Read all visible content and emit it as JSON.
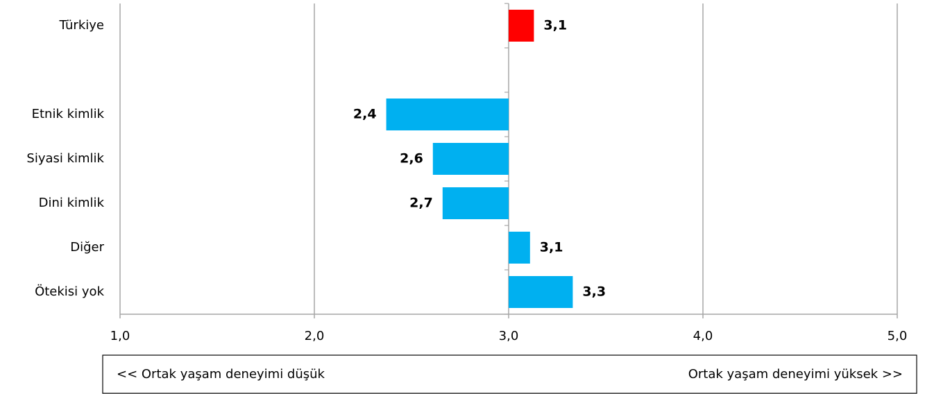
{
  "chart_data": {
    "type": "hbar",
    "categories": [
      "Türkiye",
      null,
      "Etnik kimlik",
      "Siyasi kimlik",
      "Dini kimlik",
      "Diğer",
      "Ötekisi yok"
    ],
    "values": [
      3.13,
      null,
      2.37,
      2.61,
      2.66,
      3.11,
      3.33
    ],
    "value_labels": [
      "3,1",
      null,
      "2,4",
      "2,6",
      "2,7",
      "3,1",
      "3,3"
    ],
    "colors": [
      "#ff0000",
      null,
      "#00b0f0",
      "#00b0f0",
      "#00b0f0",
      "#00b0f0",
      "#00b0f0"
    ],
    "base": 3,
    "xlim": [
      1,
      5
    ],
    "xticks": [
      {
        "value": 1,
        "label": "1,0"
      },
      {
        "value": 2,
        "label": "2,0"
      },
      {
        "value": 3,
        "label": "3,0"
      },
      {
        "value": 4,
        "label": "4,0"
      },
      {
        "value": 5,
        "label": "5,0"
      }
    ],
    "grid": true,
    "annotations": [
      "<< Ortak yaşam deneyimi düşük",
      "Ortak yaşam deneyimi yüksek >>"
    ]
  }
}
